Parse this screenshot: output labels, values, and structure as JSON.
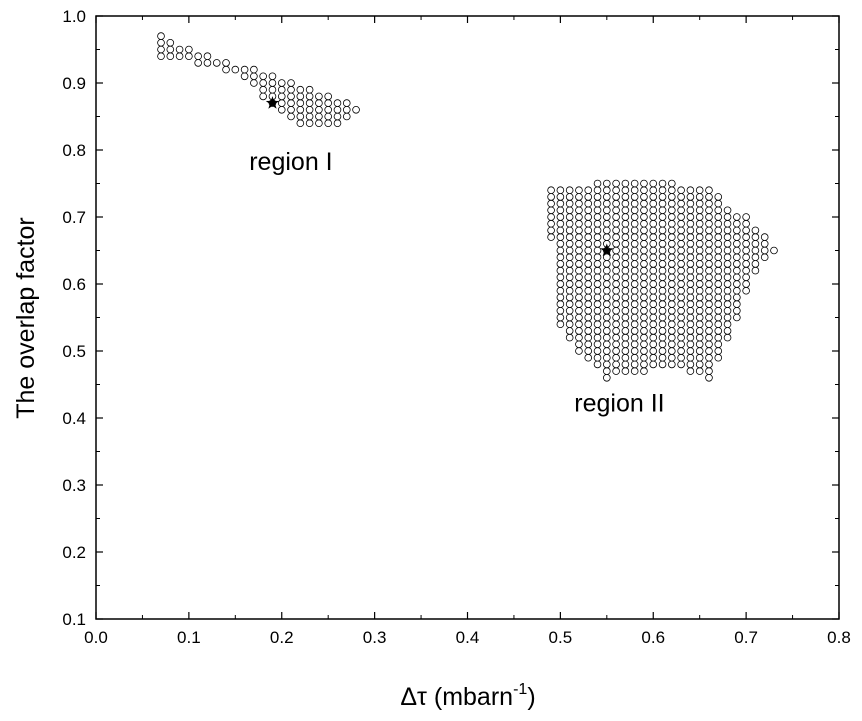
{
  "chart_data": {
    "type": "scatter",
    "xlabel": "Δτ (mbarn",
    "xlabel_sup": "-1",
    "xlabel_close": ")",
    "ylabel": "The overlap factor",
    "xlim": [
      0.0,
      0.8
    ],
    "ylim": [
      0.1,
      1.0
    ],
    "xticks": [
      "0.0",
      "0.1",
      "0.2",
      "0.3",
      "0.4",
      "0.5",
      "0.6",
      "0.7",
      "0.8"
    ],
    "yticks": [
      "0.1",
      "0.2",
      "0.3",
      "0.4",
      "0.5",
      "0.6",
      "0.7",
      "0.8",
      "0.9",
      "1.0"
    ],
    "grid": false,
    "marker": "open-circle",
    "annotations": [
      {
        "text": "region I",
        "x": 0.165,
        "y": 0.77
      },
      {
        "text": "region II",
        "x": 0.515,
        "y": 0.41
      }
    ],
    "best_points": [
      {
        "x": 0.19,
        "y": 0.87
      },
      {
        "x": 0.55,
        "y": 0.65
      }
    ],
    "regions": [
      {
        "label": "region I",
        "step": 0.01,
        "columns": [
          [
            0.07,
            0.94,
            0.97
          ],
          [
            0.08,
            0.94,
            0.96
          ],
          [
            0.09,
            0.94,
            0.95
          ],
          [
            0.1,
            0.94,
            0.95
          ],
          [
            0.11,
            0.93,
            0.94
          ],
          [
            0.12,
            0.93,
            0.94
          ],
          [
            0.13,
            0.93,
            0.93
          ],
          [
            0.14,
            0.92,
            0.93
          ],
          [
            0.15,
            0.92,
            0.92
          ],
          [
            0.16,
            0.91,
            0.92
          ],
          [
            0.17,
            0.9,
            0.92
          ],
          [
            0.18,
            0.88,
            0.91
          ],
          [
            0.19,
            0.87,
            0.91
          ],
          [
            0.2,
            0.86,
            0.9
          ],
          [
            0.21,
            0.85,
            0.9
          ],
          [
            0.22,
            0.84,
            0.89
          ],
          [
            0.23,
            0.84,
            0.89
          ],
          [
            0.24,
            0.84,
            0.88
          ],
          [
            0.25,
            0.84,
            0.88
          ],
          [
            0.26,
            0.84,
            0.87
          ],
          [
            0.27,
            0.85,
            0.87
          ],
          [
            0.28,
            0.86,
            0.86
          ]
        ]
      },
      {
        "label": "region II",
        "step": 0.01,
        "columns": [
          [
            0.49,
            0.67,
            0.74
          ],
          [
            0.5,
            0.54,
            0.74
          ],
          [
            0.51,
            0.52,
            0.74
          ],
          [
            0.52,
            0.5,
            0.74
          ],
          [
            0.53,
            0.49,
            0.74
          ],
          [
            0.54,
            0.48,
            0.75
          ],
          [
            0.55,
            0.46,
            0.75
          ],
          [
            0.56,
            0.47,
            0.75
          ],
          [
            0.57,
            0.47,
            0.75
          ],
          [
            0.58,
            0.47,
            0.75
          ],
          [
            0.59,
            0.47,
            0.75
          ],
          [
            0.6,
            0.48,
            0.75
          ],
          [
            0.61,
            0.48,
            0.75
          ],
          [
            0.62,
            0.48,
            0.75
          ],
          [
            0.63,
            0.48,
            0.74
          ],
          [
            0.64,
            0.47,
            0.74
          ],
          [
            0.65,
            0.47,
            0.74
          ],
          [
            0.66,
            0.46,
            0.74
          ],
          [
            0.67,
            0.49,
            0.73
          ],
          [
            0.68,
            0.52,
            0.71
          ],
          [
            0.69,
            0.55,
            0.7
          ],
          [
            0.7,
            0.59,
            0.7
          ],
          [
            0.71,
            0.62,
            0.68
          ],
          [
            0.72,
            0.64,
            0.67
          ],
          [
            0.73,
            0.65,
            0.65
          ]
        ]
      }
    ]
  }
}
